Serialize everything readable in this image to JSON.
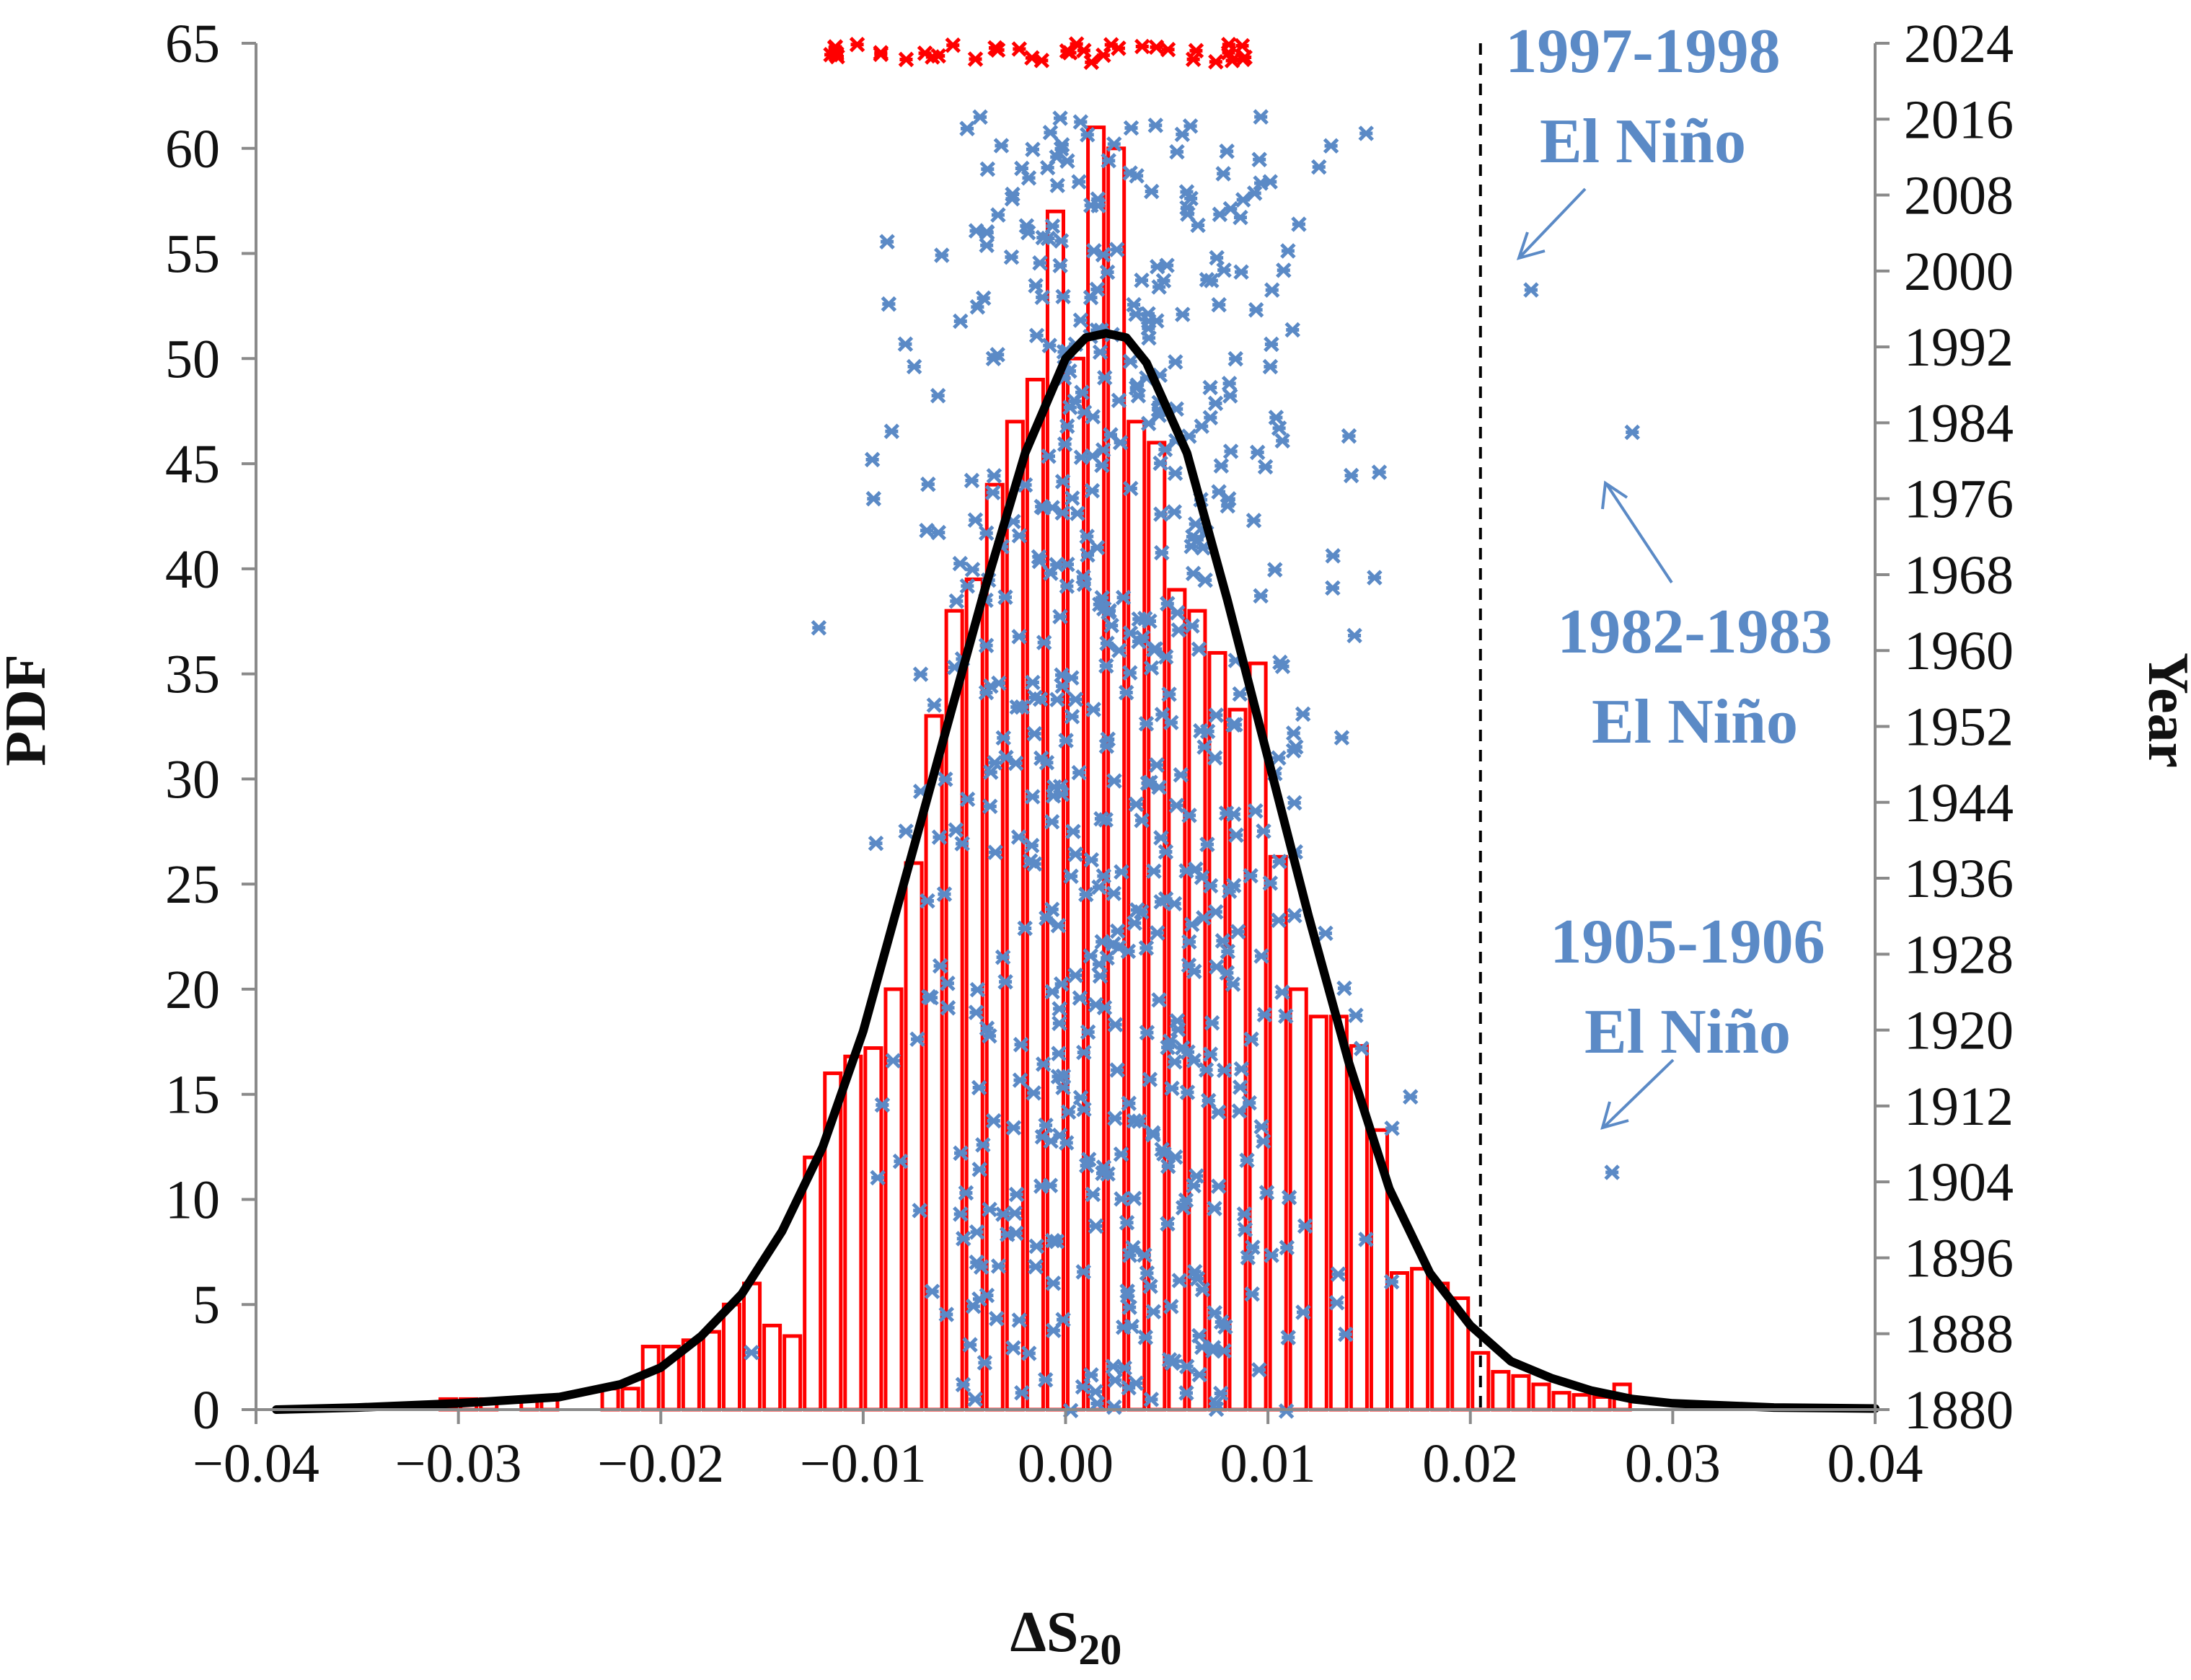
{
  "chart_data": {
    "type": "bar",
    "subtype": "histogram with fitted PDF curve and yearly scatter overlay",
    "xlabel": "ΔS",
    "xlabel_subscript": "20",
    "ylabel_left": "PDF",
    "ylabel_right": "Year",
    "xlim": [
      -0.04,
      0.04
    ],
    "ylim_left": [
      0,
      65
    ],
    "ylim_right": [
      1880,
      2024
    ],
    "x_ticks": [
      -0.04,
      -0.03,
      -0.02,
      -0.01,
      0.0,
      0.01,
      0.02,
      0.03,
      0.04
    ],
    "x_tick_labels": [
      "−0.04",
      "−0.03",
      "−0.02",
      "−0.01",
      "0.00",
      "0.01",
      "0.02",
      "0.03",
      "0.04"
    ],
    "y_left_ticks": [
      "0",
      "5",
      "10",
      "15",
      "20",
      "25",
      "30",
      "35",
      "40",
      "45",
      "50",
      "55",
      "60",
      "65"
    ],
    "y_right_ticks": [
      "1880",
      "1888",
      "1896",
      "1904",
      "1912",
      "1920",
      "1928",
      "1936",
      "1944",
      "1952",
      "1960",
      "1968",
      "1976",
      "1984",
      "1992",
      "2000",
      "2008",
      "2016",
      "2024"
    ],
    "threshold_x": 0.0205,
    "histogram": {
      "name": "PDF histogram",
      "color": "#ff0000",
      "bin_width": 0.001,
      "bin_centers": [
        -0.0305,
        -0.0295,
        -0.0285,
        -0.0265,
        -0.0255,
        -0.0225,
        -0.0215,
        -0.0205,
        -0.0195,
        -0.0185,
        -0.0175,
        -0.0165,
        -0.0155,
        -0.0145,
        -0.0135,
        -0.0125,
        -0.0115,
        -0.0105,
        -0.0095,
        -0.0085,
        -0.0075,
        -0.0065,
        -0.0055,
        -0.0045,
        -0.0035,
        -0.0025,
        -0.0015,
        -0.0005,
        0.0005,
        0.0015,
        0.0025,
        0.0035,
        0.0045,
        0.0055,
        0.0065,
        0.0075,
        0.0085,
        0.0095,
        0.0105,
        0.0115,
        0.0125,
        0.0135,
        0.0145,
        0.0155,
        0.0165,
        0.0175,
        0.0185,
        0.0195,
        0.0205,
        0.0215,
        0.0225,
        0.0235,
        0.0245,
        0.0255,
        0.0265,
        0.0275
      ],
      "values": [
        0.5,
        0.5,
        0.5,
        0.5,
        0.5,
        1,
        1,
        3,
        3,
        3.3,
        3.7,
        5,
        6,
        4,
        3.5,
        12,
        16,
        16.8,
        17.2,
        20,
        26,
        33,
        38,
        39.5,
        44,
        47,
        49,
        57,
        50,
        61,
        60,
        47,
        46,
        39,
        38,
        36,
        33.3,
        35.5,
        26.3,
        20,
        18.7,
        18.7,
        17.3,
        13.3,
        6.5,
        6.7,
        6,
        5.3,
        2.7,
        1.8,
        1.6,
        1.2,
        0.8,
        0.7,
        0.6,
        1.2
      ]
    },
    "fit_curve": {
      "name": "Fitted PDF",
      "color": "#000000",
      "x": [
        -0.039,
        -0.035,
        -0.03,
        -0.025,
        -0.022,
        -0.02,
        -0.018,
        -0.016,
        -0.014,
        -0.012,
        -0.01,
        -0.008,
        -0.006,
        -0.004,
        -0.002,
        0.0,
        0.001,
        0.002,
        0.003,
        0.004,
        0.006,
        0.008,
        0.01,
        0.012,
        0.014,
        0.016,
        0.018,
        0.02,
        0.022,
        0.024,
        0.026,
        0.028,
        0.03,
        0.035,
        0.04
      ],
      "y": [
        0,
        0.1,
        0.3,
        0.6,
        1.2,
        2,
        3.5,
        5.5,
        8.5,
        12.5,
        18,
        25,
        32,
        39,
        45.5,
        50,
        51,
        51.2,
        51,
        49.8,
        45.5,
        38.5,
        31,
        23.5,
        16.5,
        10.5,
        6.5,
        4,
        2.3,
        1.5,
        0.9,
        0.5,
        0.3,
        0.1,
        0.05
      ]
    },
    "scatter_marker_color": "#5b8ac6",
    "recent_marker_color": "#ff0000",
    "annotations": [
      {
        "line1": "1997-1998",
        "line2": "El Niño",
        "year": 1998,
        "x": 0.023
      },
      {
        "line1": "1982-1983",
        "line2": "El Niño",
        "year": 1983,
        "x": 0.028
      },
      {
        "line1": "1905-1906",
        "line2": "El Niño",
        "year": 1905,
        "x": 0.027
      }
    ]
  }
}
